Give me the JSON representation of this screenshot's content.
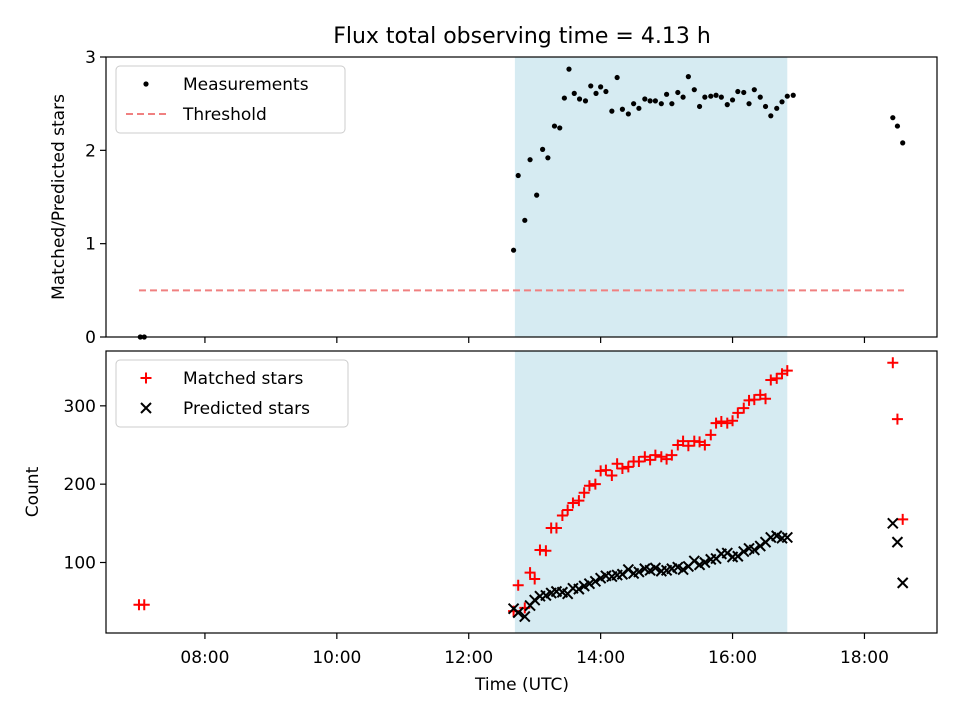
{
  "chart_data": [
    {
      "type": "scatter",
      "title": "Flux total observing time = 4.13 h",
      "xlabel": "",
      "ylabel": "Matched/Predicted stars",
      "xlim": [
        6.5,
        19.1
      ],
      "ylim": [
        0,
        3
      ],
      "yticks": [
        0,
        1,
        2,
        3
      ],
      "shaded_region": {
        "x": [
          12.7,
          16.83
        ],
        "color": "#add8e6"
      },
      "legend_position": "upper-left",
      "series": [
        {
          "name": "Measurements",
          "marker": "dot",
          "color": "#000000",
          "points": [
            [
              7.02,
              0.0
            ],
            [
              7.08,
              0.0
            ],
            [
              12.68,
              0.93
            ],
            [
              12.75,
              1.73
            ],
            [
              12.85,
              1.25
            ],
            [
              12.93,
              1.9
            ],
            [
              13.03,
              1.52
            ],
            [
              13.12,
              2.01
            ],
            [
              13.2,
              1.92
            ],
            [
              13.3,
              2.26
            ],
            [
              13.38,
              2.24
            ],
            [
              13.45,
              2.56
            ],
            [
              13.52,
              2.87
            ],
            [
              13.6,
              2.61
            ],
            [
              13.68,
              2.55
            ],
            [
              13.77,
              2.53
            ],
            [
              13.85,
              2.69
            ],
            [
              13.93,
              2.61
            ],
            [
              14.0,
              2.68
            ],
            [
              14.08,
              2.63
            ],
            [
              14.17,
              2.42
            ],
            [
              14.25,
              2.78
            ],
            [
              14.33,
              2.44
            ],
            [
              14.42,
              2.39
            ],
            [
              14.5,
              2.5
            ],
            [
              14.58,
              2.45
            ],
            [
              14.67,
              2.55
            ],
            [
              14.75,
              2.53
            ],
            [
              14.83,
              2.53
            ],
            [
              14.92,
              2.5
            ],
            [
              15.0,
              2.6
            ],
            [
              15.08,
              2.5
            ],
            [
              15.17,
              2.62
            ],
            [
              15.25,
              2.57
            ],
            [
              15.33,
              2.79
            ],
            [
              15.42,
              2.65
            ],
            [
              15.5,
              2.47
            ],
            [
              15.58,
              2.57
            ],
            [
              15.67,
              2.58
            ],
            [
              15.75,
              2.59
            ],
            [
              15.83,
              2.57
            ],
            [
              15.92,
              2.49
            ],
            [
              16.0,
              2.54
            ],
            [
              16.08,
              2.63
            ],
            [
              16.17,
              2.62
            ],
            [
              16.25,
              2.5
            ],
            [
              16.33,
              2.65
            ],
            [
              16.42,
              2.57
            ],
            [
              16.5,
              2.47
            ],
            [
              16.58,
              2.37
            ],
            [
              16.67,
              2.45
            ],
            [
              16.75,
              2.52
            ],
            [
              16.83,
              2.58
            ],
            [
              16.92,
              2.59
            ],
            [
              18.43,
              2.35
            ],
            [
              18.5,
              2.26
            ],
            [
              18.58,
              2.08
            ]
          ]
        },
        {
          "name": "Threshold",
          "line": "dashed",
          "color": "#f08080",
          "points": [
            [
              7.0,
              0.5
            ],
            [
              18.6,
              0.5
            ]
          ]
        }
      ]
    },
    {
      "type": "scatter",
      "title": "",
      "xlabel": "Time (UTC)",
      "ylabel": "Count",
      "xlim": [
        6.5,
        19.1
      ],
      "ylim": [
        10,
        370
      ],
      "yticks": [
        100,
        200,
        300
      ],
      "xticks": [
        8,
        10,
        12,
        14,
        16,
        18
      ],
      "xticklabels": [
        "08:00",
        "10:00",
        "12:00",
        "14:00",
        "16:00",
        "18:00"
      ],
      "shaded_region": {
        "x": [
          12.7,
          16.83
        ],
        "color": "#add8e6"
      },
      "legend_position": "upper-left",
      "series": [
        {
          "name": "Matched stars",
          "marker": "plus",
          "color": "#ff0000",
          "points": [
            [
              7.0,
              46
            ],
            [
              7.08,
              46
            ],
            [
              12.68,
              38
            ],
            [
              12.75,
              71
            ],
            [
              12.85,
              42
            ],
            [
              12.93,
              87
            ],
            [
              13.0,
              79
            ],
            [
              13.08,
              116
            ],
            [
              13.17,
              115
            ],
            [
              13.25,
              144
            ],
            [
              13.33,
              144
            ],
            [
              13.42,
              160
            ],
            [
              13.5,
              167
            ],
            [
              13.58,
              176
            ],
            [
              13.67,
              179
            ],
            [
              13.75,
              189
            ],
            [
              13.83,
              198
            ],
            [
              13.92,
              200
            ],
            [
              14.0,
              217
            ],
            [
              14.08,
              218
            ],
            [
              14.17,
              211
            ],
            [
              14.25,
              226
            ],
            [
              14.33,
              220
            ],
            [
              14.42,
              222
            ],
            [
              14.5,
              229
            ],
            [
              14.58,
              229
            ],
            [
              14.67,
              235
            ],
            [
              14.75,
              231
            ],
            [
              14.83,
              237
            ],
            [
              14.92,
              235
            ],
            [
              15.0,
              232
            ],
            [
              15.08,
              237
            ],
            [
              15.17,
              250
            ],
            [
              15.25,
              255
            ],
            [
              15.33,
              249
            ],
            [
              15.42,
              255
            ],
            [
              15.5,
              254
            ],
            [
              15.58,
              250
            ],
            [
              15.67,
              263
            ],
            [
              15.75,
              278
            ],
            [
              15.83,
              280
            ],
            [
              15.92,
              278
            ],
            [
              16.0,
              281
            ],
            [
              16.08,
              291
            ],
            [
              16.17,
              297
            ],
            [
              16.25,
              307
            ],
            [
              16.33,
              308
            ],
            [
              16.42,
              314
            ],
            [
              16.5,
              309
            ],
            [
              16.58,
              333
            ],
            [
              16.67,
              335
            ],
            [
              16.75,
              341
            ],
            [
              16.83,
              345
            ],
            [
              18.43,
              355
            ],
            [
              18.5,
              283
            ],
            [
              18.58,
              155
            ]
          ]
        },
        {
          "name": "Predicted stars",
          "marker": "x",
          "color": "#000000",
          "points": [
            [
              12.68,
              41
            ],
            [
              12.75,
              36
            ],
            [
              12.85,
              31
            ],
            [
              12.93,
              45
            ],
            [
              13.0,
              52
            ],
            [
              13.08,
              57
            ],
            [
              13.17,
              58
            ],
            [
              13.25,
              61
            ],
            [
              13.33,
              63
            ],
            [
              13.42,
              62
            ],
            [
              13.5,
              60
            ],
            [
              13.58,
              67
            ],
            [
              13.67,
              66
            ],
            [
              13.75,
              70
            ],
            [
              13.83,
              73
            ],
            [
              13.92,
              76
            ],
            [
              14.0,
              80
            ],
            [
              14.08,
              83
            ],
            [
              14.17,
              82
            ],
            [
              14.25,
              84
            ],
            [
              14.33,
              85
            ],
            [
              14.42,
              91
            ],
            [
              14.5,
              86
            ],
            [
              14.58,
              88
            ],
            [
              14.67,
              92
            ],
            [
              14.75,
              90
            ],
            [
              14.83,
              93
            ],
            [
              14.92,
              89
            ],
            [
              15.0,
              90
            ],
            [
              15.08,
              92
            ],
            [
              15.17,
              94
            ],
            [
              15.25,
              91
            ],
            [
              15.33,
              95
            ],
            [
              15.42,
              102
            ],
            [
              15.5,
              97
            ],
            [
              15.58,
              100
            ],
            [
              15.67,
              104
            ],
            [
              15.75,
              105
            ],
            [
              15.83,
              111
            ],
            [
              15.92,
              112
            ],
            [
              16.0,
              107
            ],
            [
              16.08,
              108
            ],
            [
              16.17,
              114
            ],
            [
              16.25,
              118
            ],
            [
              16.33,
              116
            ],
            [
              16.42,
              121
            ],
            [
              16.5,
              126
            ],
            [
              16.58,
              132
            ],
            [
              16.67,
              134
            ],
            [
              16.75,
              131
            ],
            [
              16.83,
              132
            ],
            [
              18.43,
              150
            ],
            [
              18.5,
              126
            ],
            [
              18.58,
              74
            ]
          ]
        }
      ]
    }
  ]
}
